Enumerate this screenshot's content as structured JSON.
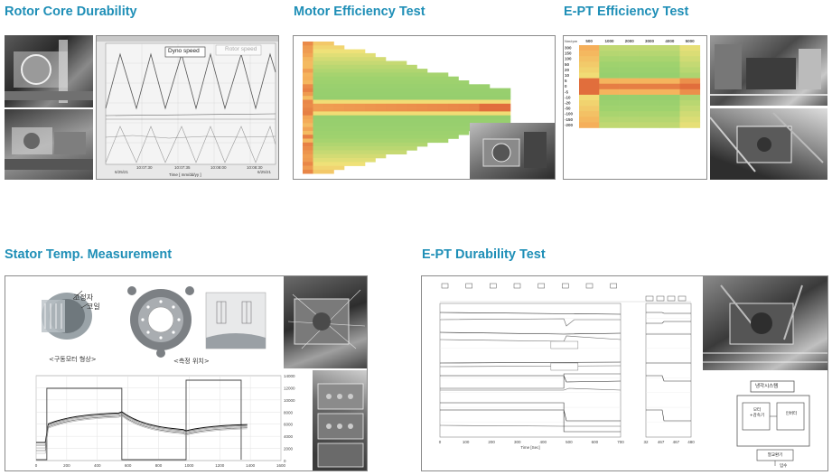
{
  "sections": {
    "rotor": {
      "title": "Rotor Core Durability",
      "legend_dyno": "Dyno speed",
      "legend_rotor": "Rotor speed",
      "x_axis_label": "Time [ mm/dd/yy ]"
    },
    "motor": {
      "title": "Motor Efficiency Test"
    },
    "ept_eff": {
      "title": "E-PT Efficiency Test",
      "col_headers": [
        "500",
        "1000",
        "2000",
        "3000",
        "4000",
        "5000"
      ],
      "row_headers": [
        "300",
        "150",
        "100",
        "50",
        "20",
        "10",
        "5",
        "0",
        "-5",
        "-10",
        "-20",
        "-50",
        "-100",
        "-150",
        "-200"
      ],
      "corner": "Nm/rpm"
    },
    "stator": {
      "title": "Stator Temp. Measurement",
      "label_stator": "고정자",
      "label_coil": "코일",
      "caption_shape": "<구동모터 형상>",
      "caption_pos": "<측정 위치>",
      "x_ticks": [
        "0",
        "200",
        "400",
        "600",
        "800",
        "1000",
        "1200",
        "1400",
        "1600"
      ],
      "y_right_ticks": [
        "14000",
        "12000",
        "10000",
        "8000",
        "6000",
        "4000",
        "2000",
        "0"
      ]
    },
    "ept_dur": {
      "title": "E-PT Durability Test",
      "x_ticks": [
        "0",
        "100",
        "200",
        "300",
        "400",
        "500",
        "600",
        "700"
      ],
      "x_ticks2": [
        "32",
        "467",
        "467",
        "480"
      ],
      "x_axis_label": "Time [Sec]",
      "diagram_title": "냉각시스템",
      "diagram_box1": "모터\n+감속기",
      "diagram_box2": "인버터",
      "diagram_box3": "열교환기",
      "diagram_in": "입수"
    }
  },
  "colors": {
    "title": "#1f8fb7"
  }
}
